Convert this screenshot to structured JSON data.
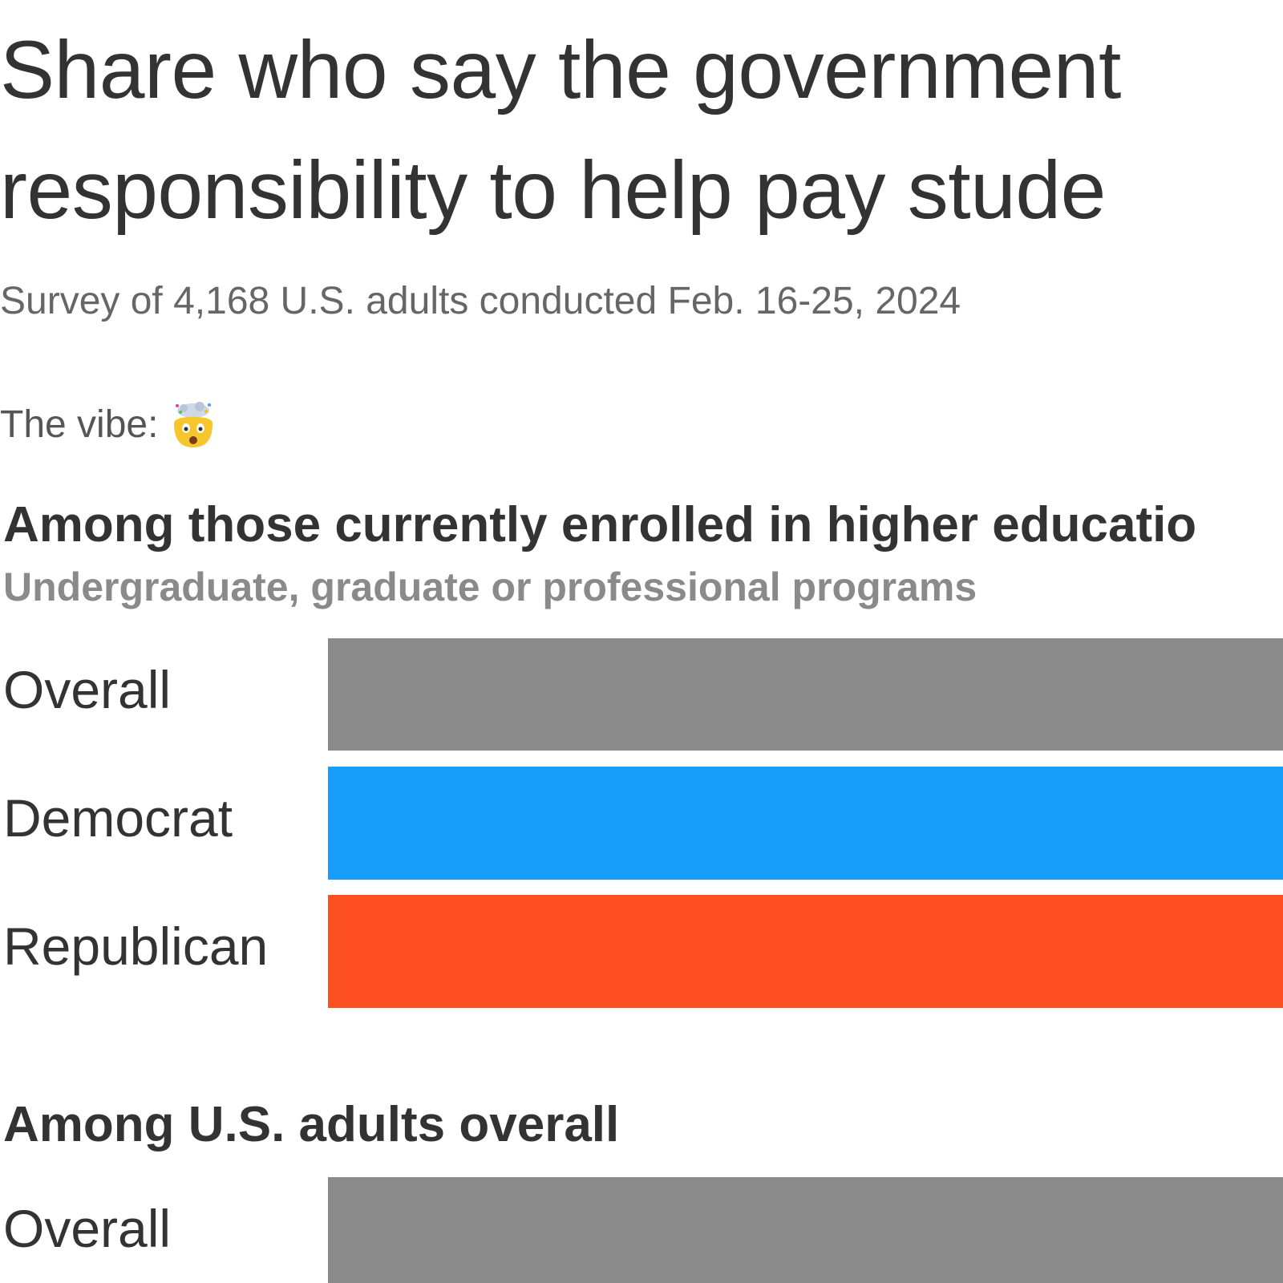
{
  "title_lines": [
    "Share who say the government",
    "responsibility to help pay stude"
  ],
  "subtitle": "Survey of 4,168 U.S. adults conducted Feb. 16-25, 2024",
  "vibe_label": "The vibe:",
  "vibe_icon": "exploding-head-emoji",
  "colors": {
    "overall": "#8a8a8a",
    "democrat": "#179dfb",
    "republican": "#ff5022"
  },
  "chart_data": [
    {
      "type": "bar",
      "orientation": "horizontal",
      "title": "Among those currently enrolled in higher educatio",
      "subtitle": "Undergraduate, graduate or professional programs",
      "categories": [
        "Overall",
        "Democrat",
        "Republican"
      ],
      "series_colors": [
        "#8a8a8a",
        "#179dfb",
        "#ff5022"
      ]
    },
    {
      "type": "bar",
      "orientation": "horizontal",
      "title": "Among U.S. adults overall",
      "categories": [
        "Overall"
      ],
      "series_colors": [
        "#8a8a8a"
      ]
    }
  ]
}
